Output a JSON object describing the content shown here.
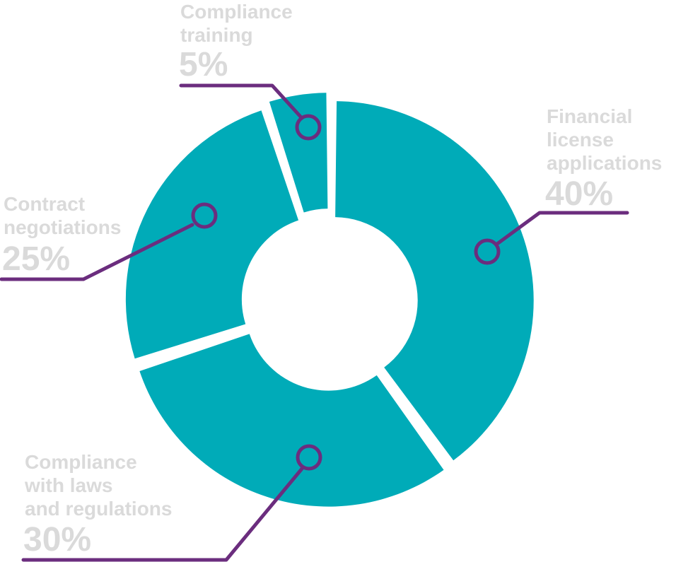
{
  "chart_data": {
    "type": "pie",
    "variant": "donut",
    "categories": [
      "Financial license applications",
      "Compliance with laws and regulations",
      "Contract negotiations",
      "Compliance training"
    ],
    "values": [
      40,
      30,
      25,
      5
    ],
    "slices": [
      {
        "label_lines": [
          "Financial",
          "license",
          "applications"
        ],
        "value_label": "40%",
        "value": 40
      },
      {
        "label_lines": [
          "Compliance",
          "with laws",
          "and regulations"
        ],
        "value_label": "30%",
        "value": 30
      },
      {
        "label_lines": [
          "Contract",
          "negotiations"
        ],
        "value_label": "25%",
        "value": 25
      },
      {
        "label_lines": [
          "Compliance",
          "training"
        ],
        "value_label": "5%",
        "value": 5
      }
    ],
    "colors": {
      "slice": "#00abb8",
      "leader": "#6b2d7e",
      "label": "#dadada"
    },
    "legend": "none"
  }
}
